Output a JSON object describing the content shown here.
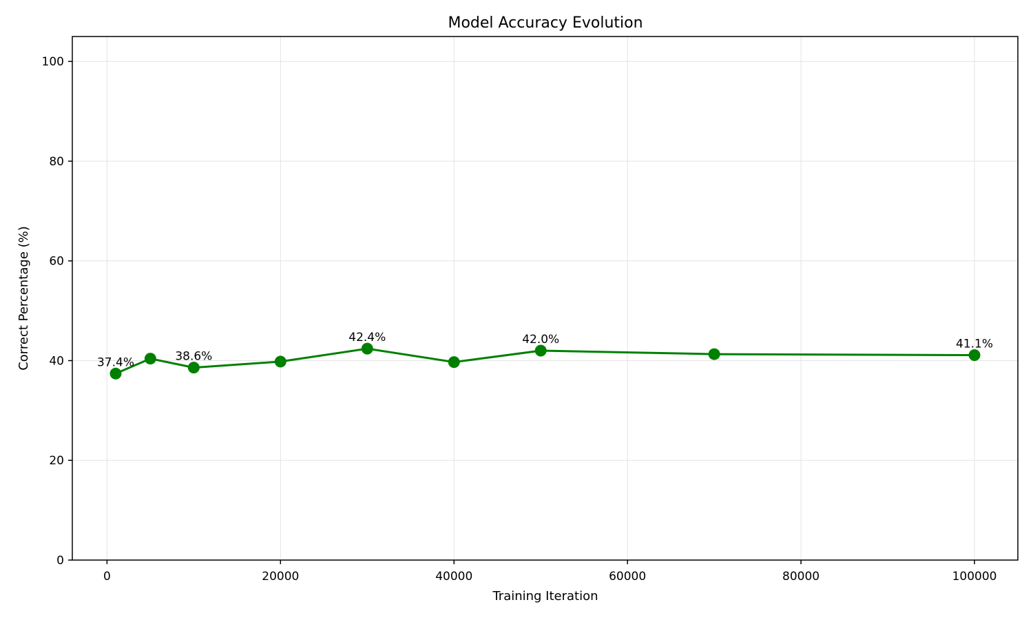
{
  "chart_data": {
    "type": "line",
    "title": "Model Accuracy Evolution",
    "xlabel": "Training Iteration",
    "ylabel": "Correct Percentage (%)",
    "xlim": [
      -4000,
      105000
    ],
    "ylim": [
      0,
      105
    ],
    "x_ticks": [
      0,
      20000,
      40000,
      60000,
      80000,
      100000
    ],
    "y_ticks": [
      0,
      20,
      40,
      60,
      80,
      100
    ],
    "grid": true,
    "series": [
      {
        "color": "#008000",
        "marker": "circle",
        "x": [
          1000,
          5000,
          10000,
          20000,
          30000,
          40000,
          50000,
          70000,
          100000
        ],
        "y": [
          37.4,
          40.4,
          38.6,
          39.8,
          42.4,
          39.7,
          42.0,
          41.3,
          41.1
        ]
      }
    ],
    "annotations": [
      {
        "x": 1000,
        "y": 37.4,
        "text": "37.4%"
      },
      {
        "x": 10000,
        "y": 38.6,
        "text": "38.6%"
      },
      {
        "x": 30000,
        "y": 42.4,
        "text": "42.4%"
      },
      {
        "x": 50000,
        "y": 42.0,
        "text": "42.0%"
      },
      {
        "x": 100000,
        "y": 41.1,
        "text": "41.1%"
      }
    ]
  }
}
